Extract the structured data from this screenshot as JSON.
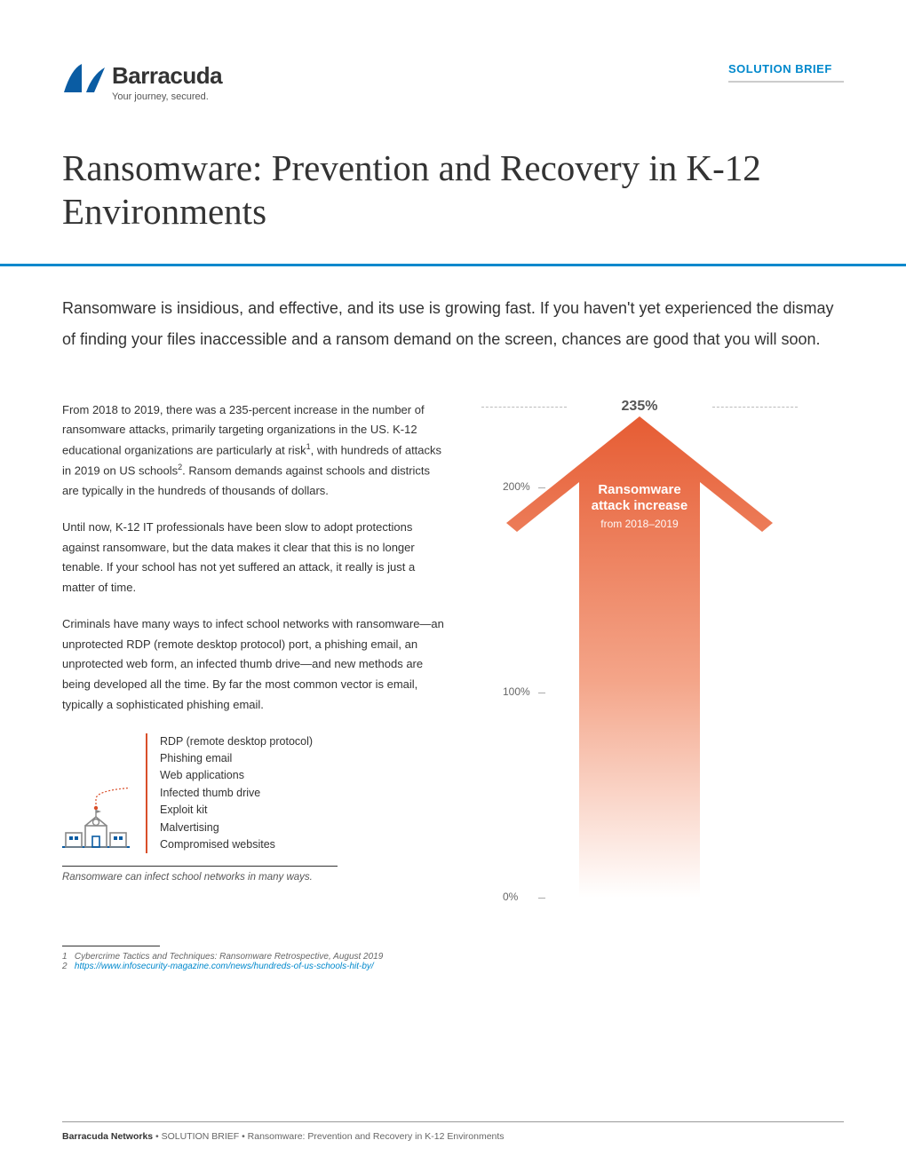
{
  "brand": {
    "name": "Barracuda",
    "tagline": "Your journey, secured.",
    "logo_color": "#0a5ca3"
  },
  "doc_type": "SOLUTION BRIEF",
  "title": "Ransomware: Prevention and Recovery in K-12 Environments",
  "intro": "Ransomware is insidious, and effective, and its use is growing fast. If you haven't yet experienced the dismay of finding your files inaccessible and a ransom demand on the screen, chances are good that you will soon.",
  "paras": {
    "p1a": "From 2018 to 2019, there was a 235-percent increase in the number of ransomware attacks, primarily targeting organizations in the US. K-12 educational organizations are particularly at risk",
    "p1b": ", with hundreds of attacks in 2019 on US schools",
    "p1c": ". Ransom demands against schools and districts are typically in the hundreds of thousands of dollars.",
    "p2": "Until now, K-12 IT professionals have been slow to adopt protections against ransomware, but the data makes it clear that this is no longer tenable. If your school has not yet suffered an attack, it really is just a matter of time.",
    "p3": "Criminals have many ways to infect school networks with ransomware—an unprotected RDP (remote desktop protocol) port, a phishing email, an unprotected web form, an infected thumb drive—and new methods are being developed all the time. By far the most common vector is email, typically a sophisticated phishing email."
  },
  "vectors": {
    "items": [
      "RDP (remote desktop protocol)",
      "Phishing email",
      "Web applications",
      "Infected thumb drive",
      "Exploit kit",
      "Malvertising",
      "Compromised websites"
    ],
    "caption": "Ransomware can infect school networks in many ways.",
    "accent_color": "#d94f2a"
  },
  "chart": {
    "type": "arrow-bar",
    "peak_label": "235%",
    "title_line1": "Ransomware",
    "title_line2": "attack increase",
    "subtitle": "from 2018–2019",
    "ylim": [
      0,
      235
    ],
    "ticks": [
      {
        "label": "200%",
        "value": 200
      },
      {
        "label": "100%",
        "value": 100
      },
      {
        "label": "0%",
        "value": 0
      }
    ],
    "gradient_top": "#e65c33",
    "gradient_bottom": "#ffffff",
    "axis_color": "#888888",
    "peak_label_color": "#555555",
    "text_color": "#ffffff"
  },
  "footnotes": {
    "f1_label": "1",
    "f1_text": "Cybercrime Tactics and Techniques: Ransomware Retrospective, August 2019",
    "f2_label": "2",
    "f2_text": "https://www.infosecurity-magazine.com/news/hundreds-of-us-schools-hit-by/"
  },
  "footer": {
    "brand": "Barracuda Networks",
    "bullet": " • ",
    "doctype": "SOLUTION BRIEF",
    "title": "Ransomware: Prevention and Recovery in K-12 Environments"
  }
}
